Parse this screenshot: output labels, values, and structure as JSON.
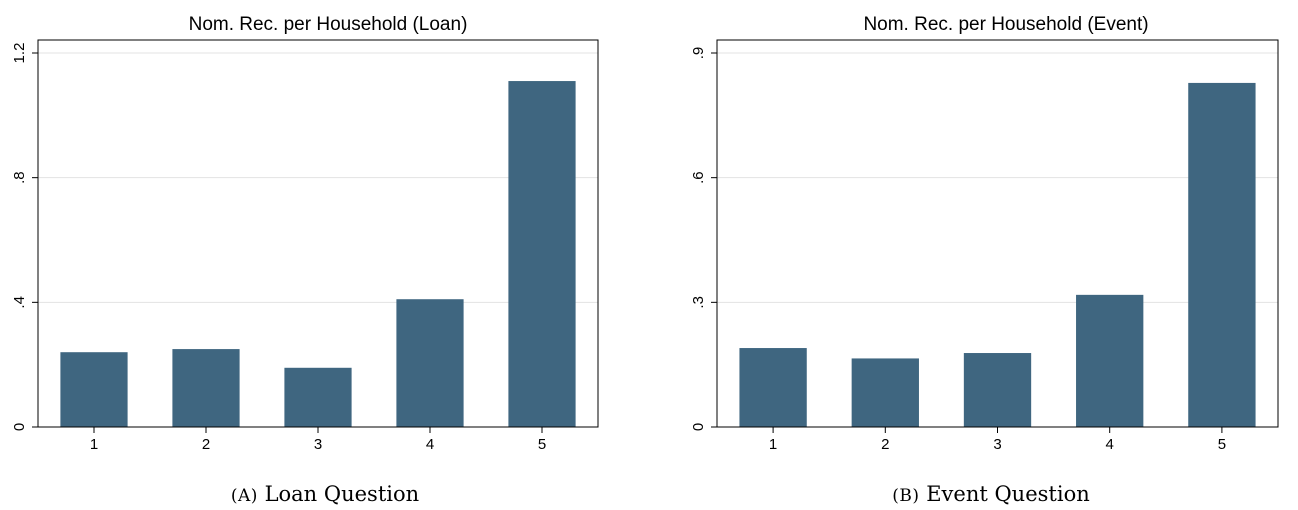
{
  "chart_data": [
    {
      "type": "bar",
      "title": "Nom. Rec. per Household (Loan)",
      "categories": [
        "1",
        "2",
        "3",
        "4",
        "5"
      ],
      "values": [
        0.24,
        0.25,
        0.19,
        0.41,
        1.11
      ],
      "ylim": [
        0,
        1.2
      ],
      "yticks": [
        0,
        0.4,
        0.8,
        1.2
      ],
      "ytick_labels": [
        "0",
        ".4",
        ".8",
        "1.2"
      ],
      "bar_color": "#3f6680",
      "grid": true,
      "caption_label": "(A)",
      "caption_text": "Loan Question"
    },
    {
      "type": "bar",
      "title": "Nom. Rec. per Household (Event)",
      "categories": [
        "1",
        "2",
        "3",
        "4",
        "5"
      ],
      "values": [
        0.19,
        0.165,
        0.178,
        0.318,
        0.828
      ],
      "ylim": [
        0,
        0.9
      ],
      "yticks": [
        0,
        0.3,
        0.6,
        0.9
      ],
      "ytick_labels": [
        "0",
        ".3",
        ".6",
        ".9"
      ],
      "bar_color": "#3f6680",
      "grid": true,
      "caption_label": "(B)",
      "caption_text": "Event Question"
    }
  ]
}
